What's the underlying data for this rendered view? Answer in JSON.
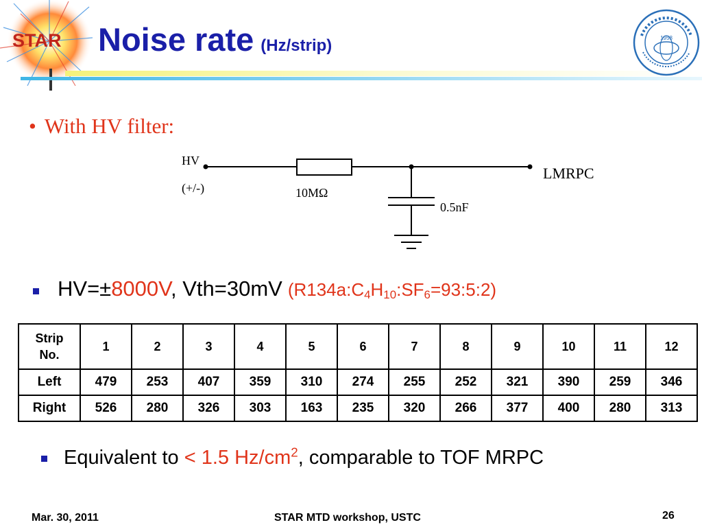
{
  "header": {
    "logo_text": "STAR",
    "title": "Noise rate",
    "title_sub": "(Hz/strip)",
    "seal_year": "1958"
  },
  "bullet1": {
    "text": "With HV filter:"
  },
  "circuit": {
    "hv_label": "HV",
    "hv_polarity": "(+/-)",
    "resistor": "10MΩ",
    "capacitor": "0.5nF",
    "output": "LMRPC"
  },
  "bullet2": {
    "prefix": "HV=",
    "pm": "±",
    "hv_value": "8000V",
    "vth": ", Vth=30mV",
    "gas": {
      "p1": "(R134a:C",
      "s1": "4",
      "p2": "H",
      "s2": "10",
      "p3": ":SF",
      "s3": "6",
      "p4": "=93:5:2)"
    }
  },
  "table": {
    "header_label_1": "Strip",
    "header_label_2": "No.",
    "strips": [
      "1",
      "2",
      "3",
      "4",
      "5",
      "6",
      "7",
      "8",
      "9",
      "10",
      "11",
      "12"
    ],
    "rows": [
      {
        "label": "Left",
        "values": [
          "479",
          "253",
          "407",
          "359",
          "310",
          "274",
          "255",
          "252",
          "321",
          "390",
          "259",
          "346"
        ]
      },
      {
        "label": "Right",
        "values": [
          "526",
          "280",
          "326",
          "303",
          "163",
          "235",
          "320",
          "266",
          "377",
          "400",
          "280",
          "313"
        ]
      }
    ]
  },
  "bullet3": {
    "prefix": "Equivalent to ",
    "value": "< 1.5 Hz/cm",
    "sup": "2",
    "suffix": ", comparable to TOF MRPC"
  },
  "footer": {
    "date": "Mar. 30, 2011",
    "event": "STAR MTD workshop, USTC",
    "page": "26"
  },
  "colors": {
    "title_blue": "#1a1fa8",
    "accent_red": "#e0341a"
  }
}
